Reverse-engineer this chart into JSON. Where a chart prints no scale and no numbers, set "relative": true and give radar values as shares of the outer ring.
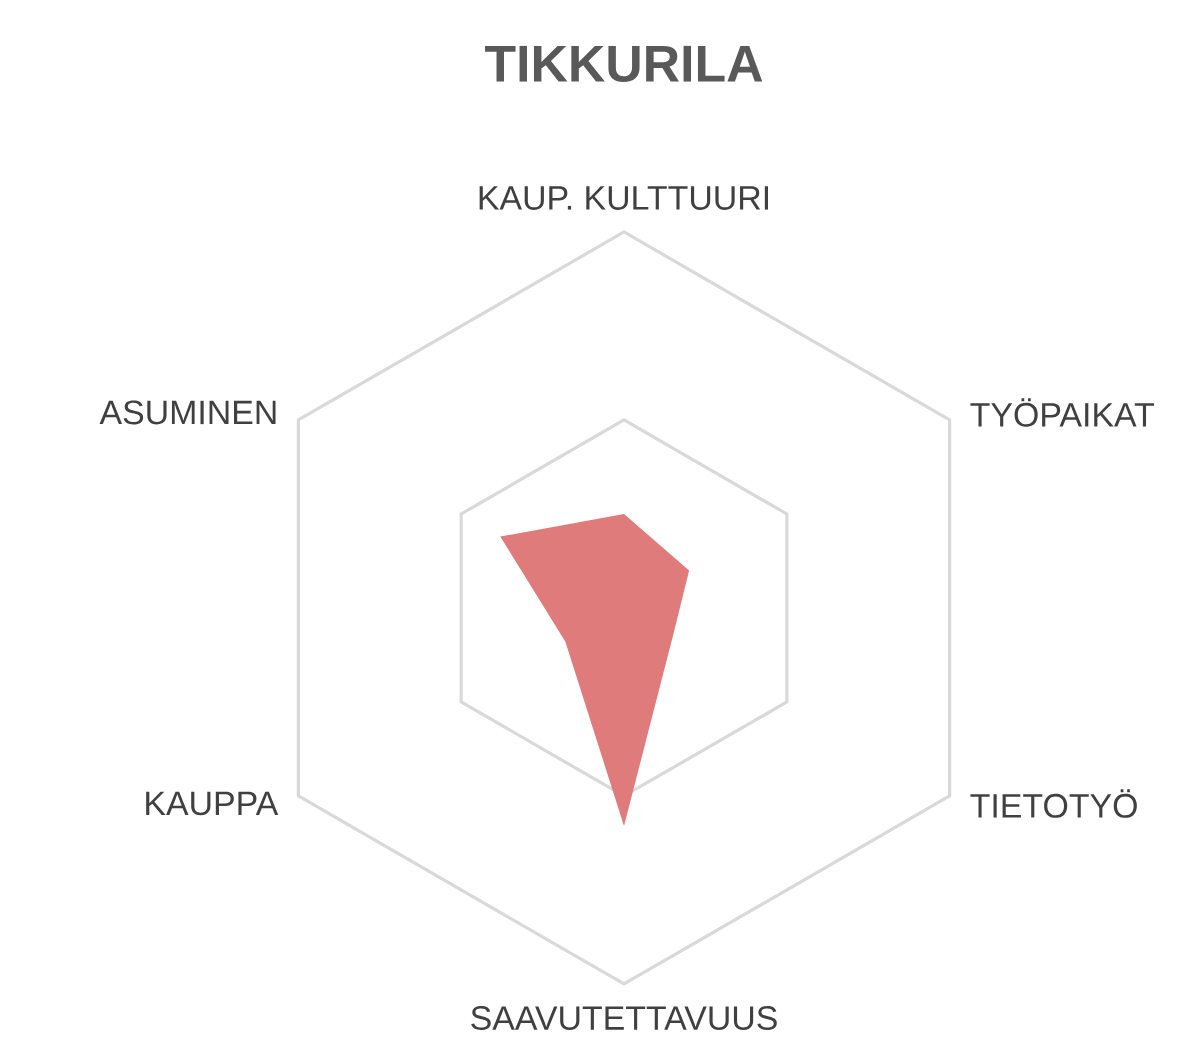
{
  "chart_data": {
    "type": "radar",
    "title": "TIKKURILA",
    "relative": true,
    "grid": true,
    "categories": [
      "KAUP. KULTTUURI",
      "TYÖPAIKAT",
      "TIETOTYÖ",
      "SAAVUTETTAVUUS",
      "KAUPPA",
      "ASUMINEN"
    ],
    "series": [
      {
        "color": "#e07b7b",
        "values": [
          0.25,
          0.2,
          0.15,
          0.58,
          0.18,
          0.38
        ]
      }
    ]
  }
}
